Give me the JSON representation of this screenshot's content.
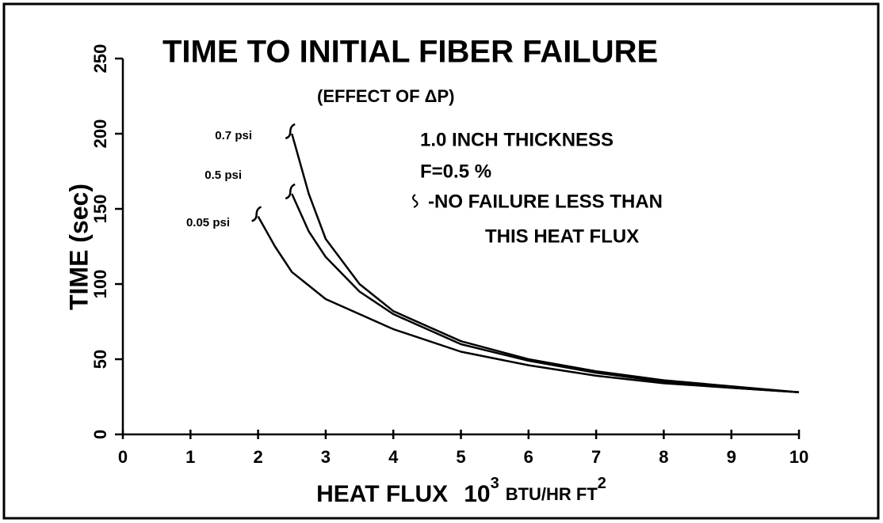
{
  "chart_data": {
    "type": "line",
    "title": "TIME TO INITIAL FIBER FAILURE",
    "subtitle": "(EFFECT OF ΔP)",
    "annotations": [
      "1.0 INCH THICKNESS",
      "F=0.5 %",
      "-NO FAILURE LESS THAN",
      "THIS HEAT FLUX"
    ],
    "x_label": [
      "HEAT FLUX",
      "10",
      "3",
      "BTU/HR FT",
      "2"
    ],
    "y_label": "TIME (sec)",
    "xlim": [
      0,
      10
    ],
    "xticks": [
      0,
      1,
      2,
      3,
      4,
      5,
      6,
      7,
      8,
      9,
      10
    ],
    "ylim": [
      0,
      250
    ],
    "yticks": [
      0,
      50,
      100,
      150,
      200,
      250
    ],
    "color": "#000000",
    "series": [
      {
        "name": "0.7 psi",
        "x": [
          2.5,
          2.75,
          3,
          3.5,
          4,
          5,
          6,
          7,
          8,
          9,
          10
        ],
        "values": [
          200,
          160,
          130,
          100,
          82,
          62,
          50,
          42,
          36,
          32,
          28
        ]
      },
      {
        "name": "0.5 psi",
        "x": [
          2.5,
          2.75,
          3,
          3.5,
          4,
          5,
          6,
          7,
          8,
          9,
          10
        ],
        "values": [
          160,
          135,
          118,
          95,
          80,
          60,
          49,
          41,
          35,
          31,
          28
        ]
      },
      {
        "name": "0.05 psi",
        "x": [
          2,
          2.25,
          2.5,
          3,
          3.5,
          4,
          5,
          6,
          7,
          8,
          9,
          10
        ],
        "values": [
          145,
          125,
          108,
          90,
          80,
          70,
          55,
          46,
          39,
          34,
          31,
          28
        ]
      }
    ]
  }
}
